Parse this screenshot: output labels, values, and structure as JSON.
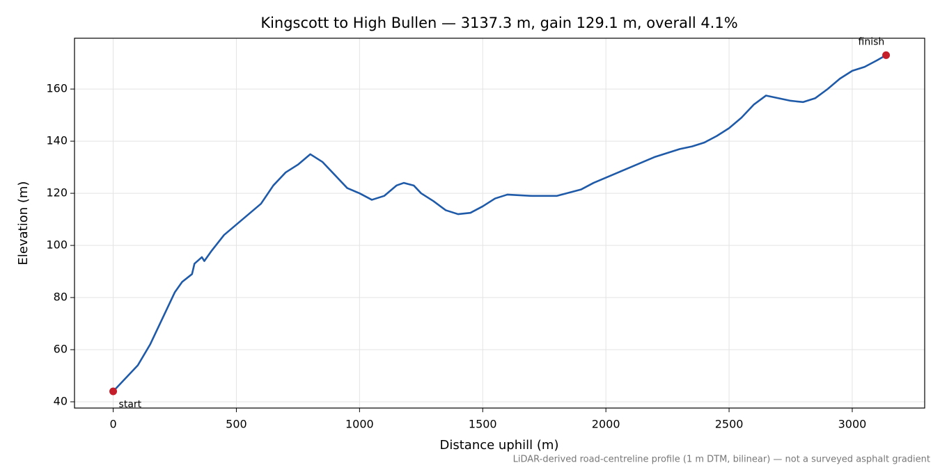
{
  "chart_data": {
    "type": "line",
    "title": "Kingscott to High Bullen — 3137.3 m, gain 129.1 m, overall 4.1%",
    "x_label": "Distance uphill (m)",
    "y_label": "Elevation (m)",
    "footnote": "LiDAR-derived road-centreline profile (1 m DTM, bilinear) — not a surveyed asphalt gradient",
    "x": [
      0,
      50,
      100,
      150,
      200,
      250,
      280,
      320,
      330,
      360,
      370,
      400,
      450,
      500,
      550,
      600,
      650,
      700,
      750,
      800,
      850,
      900,
      950,
      1000,
      1050,
      1100,
      1150,
      1180,
      1220,
      1250,
      1300,
      1350,
      1400,
      1450,
      1500,
      1550,
      1600,
      1700,
      1800,
      1900,
      1950,
      2000,
      2050,
      2100,
      2150,
      2200,
      2250,
      2300,
      2350,
      2400,
      2450,
      2500,
      2550,
      2600,
      2650,
      2700,
      2750,
      2800,
      2850,
      2900,
      2950,
      3000,
      3050,
      3100,
      3137.3
    ],
    "series": [
      {
        "color": "#1f5aa8",
        "values": [
          44,
          49,
          54,
          62,
          72,
          82,
          86,
          89,
          93,
          95.5,
          94,
          98,
          104,
          108,
          112,
          116,
          123,
          128,
          131,
          135,
          132,
          127,
          122,
          120,
          117.5,
          119,
          123,
          124,
          123,
          120,
          117,
          113.5,
          112,
          112.5,
          115,
          118,
          119.5,
          119,
          119,
          121.5,
          124,
          126,
          128,
          130,
          132,
          134,
          135.5,
          137,
          138,
          139.5,
          142,
          145,
          149,
          154,
          157.5,
          156.5,
          155.5,
          155,
          156.5,
          160,
          164,
          167,
          168.5,
          171,
          173
        ]
      }
    ],
    "points": {
      "color": "#c41e2a",
      "x": [
        0,
        3137.3
      ],
      "y": [
        44,
        173
      ],
      "labels": [
        "start",
        "finish"
      ]
    },
    "xlim": [
      -157,
      3294
    ],
    "ylim": [
      37.6,
      179.5
    ],
    "xticks": [
      0,
      500,
      1000,
      1500,
      2000,
      2500,
      3000
    ],
    "yticks": [
      40,
      60,
      80,
      100,
      120,
      140,
      160
    ],
    "grid": true
  }
}
